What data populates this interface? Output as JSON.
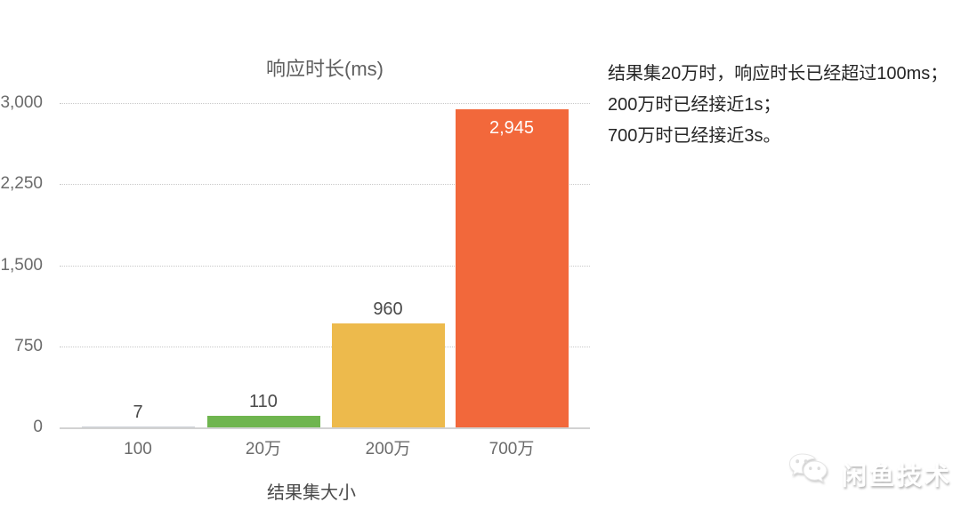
{
  "chart_data": {
    "type": "bar",
    "title": "响应时长(ms)",
    "xlabel": "结果集大小",
    "ylabel": "",
    "categories": [
      "100",
      "20万",
      "200万",
      "700万"
    ],
    "values": [
      7,
      110,
      960,
      2945
    ],
    "value_labels": [
      "7",
      "110",
      "960",
      "2,945"
    ],
    "bar_colors": [
      "#cdd2d8",
      "#6fb54f",
      "#edba4c",
      "#f2683b"
    ],
    "label_inside": [
      false,
      false,
      false,
      true
    ],
    "y_tick_values": [
      0,
      750,
      1500,
      2250,
      3000
    ],
    "y_tick_labels": [
      "0",
      "750",
      "1,500",
      "2,250",
      "3,000"
    ],
    "ylim": [
      0,
      3000
    ],
    "grid": "horizontal-dotted",
    "legend": "none"
  },
  "annotation": {
    "lines": [
      "结果集20万时，响应时长已经超过100ms；",
      "200万时已经接近1s；",
      "700万时已经接近3s。"
    ]
  },
  "watermark": {
    "icon": "wechat-icon",
    "text": "闲鱼技术"
  },
  "colors": {
    "grid": "#c9c9c9",
    "axis_text": "#6b6b6b",
    "title_text": "#5f5f5f",
    "value_text": "#4a4a4a",
    "value_text_inside": "#ffffff",
    "annotation_text": "#262626",
    "bar_green": "#6fb54f",
    "bar_yellow": "#edba4c",
    "bar_orange": "#f2683b"
  }
}
